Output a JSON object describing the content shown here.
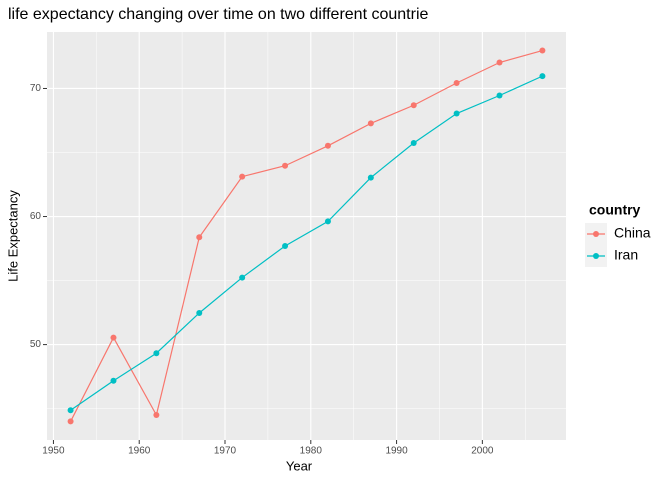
{
  "chart_data": {
    "type": "line",
    "title": "life expectancy changing over time on two different countrie",
    "x_label": "Year",
    "y_label": "Life Expectancy",
    "x": [
      1952,
      1957,
      1962,
      1967,
      1972,
      1977,
      1982,
      1987,
      1992,
      1997,
      2002,
      2007
    ],
    "series": [
      {
        "name": "China",
        "color": "#F8766D",
        "values": [
          44.0,
          50.549,
          44.501,
          58.381,
          63.119,
          63.967,
          65.525,
          67.274,
          68.69,
          70.426,
          72.028,
          72.961
        ]
      },
      {
        "name": "Iran",
        "color": "#00BFC4",
        "values": [
          44.869,
          47.181,
          49.325,
          52.469,
          55.234,
          57.702,
          59.62,
          63.04,
          65.742,
          68.042,
          69.451,
          70.964
        ]
      }
    ],
    "legend_title": "country",
    "xlim": [
      1949.25,
      2009.75
    ],
    "xticks": [
      1950,
      1960,
      1970,
      1980,
      1990,
      2000
    ],
    "ylim": [
      42.55,
      74.41
    ],
    "yticks": [
      50,
      60,
      70
    ],
    "grid": true,
    "legend": "right"
  }
}
